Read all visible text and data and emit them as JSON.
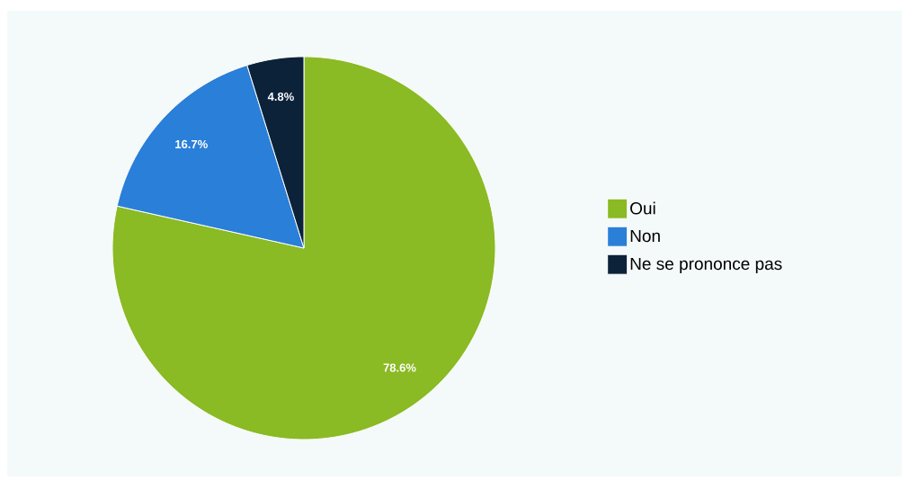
{
  "chart_data": {
    "type": "pie",
    "categories": [
      "Oui",
      "Non",
      "Ne se prononce pas"
    ],
    "values": [
      78.6,
      16.7,
      4.8
    ],
    "colors": [
      "#8aba24",
      "#2a7fd8",
      "#0c2239"
    ],
    "value_labels": [
      "78.6%",
      "16.7%",
      "4.8%"
    ],
    "legend": "right"
  }
}
